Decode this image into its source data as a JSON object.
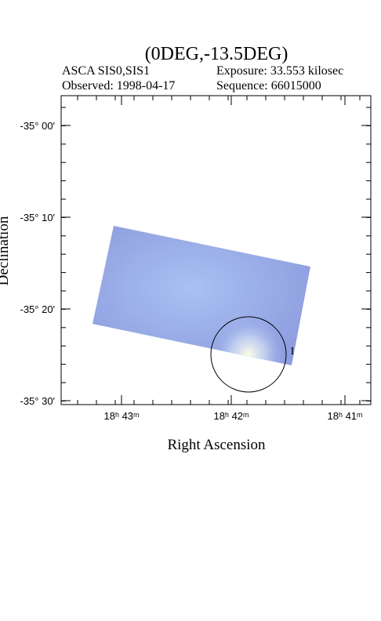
{
  "title": "(0DEG,-13.5DEG)",
  "info": {
    "instrument": "ASCA SIS0,SIS1",
    "exposure": "Exposure: 33.553 kilosec",
    "observed": "Observed: 1998-04-17",
    "sequence": "Sequence: 66015000"
  },
  "y_axis": {
    "label": "Declination",
    "ticks": [
      "-35° 00′",
      "-35° 10′",
      "-35° 20′",
      "-35° 30′"
    ]
  },
  "x_axis": {
    "label": "Right Ascension",
    "ticks": [
      "18ʰ 43ᵐ",
      "18ʰ 42ᵐ",
      "18ʰ 41ᵐ"
    ]
  },
  "annotation": "I"
}
